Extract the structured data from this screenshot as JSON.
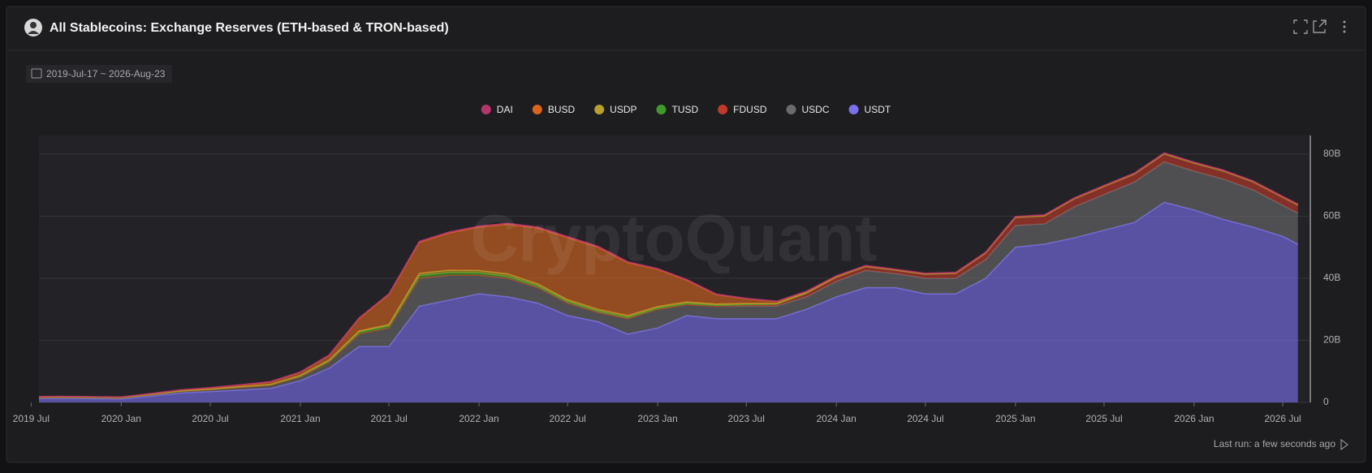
{
  "header": {
    "title": "All Stablecoins: Exchange Reserves (ETH-based & TRON-based)",
    "date_range": "2019-Jul-17 ~ 2026-Aug-23",
    "last_run": "Last run: a few seconds ago"
  },
  "chart_data": {
    "type": "stacked-area",
    "watermark": "CryptoQuant",
    "x": [
      "2019-07",
      "2019-09",
      "2019-11",
      "2020-01",
      "2020-03",
      "2020-05",
      "2020-07",
      "2020-09",
      "2020-11",
      "2021-01",
      "2021-03",
      "2021-05",
      "2021-07",
      "2021-09",
      "2021-11",
      "2022-01",
      "2022-03",
      "2022-05",
      "2022-07",
      "2022-09",
      "2022-11",
      "2023-01",
      "2023-03",
      "2023-05",
      "2023-07",
      "2023-09",
      "2023-11",
      "2024-01",
      "2024-03",
      "2024-05",
      "2024-07",
      "2024-09",
      "2024-11",
      "2025-01",
      "2025-03",
      "2025-05",
      "2025-07",
      "2025-09",
      "2025-11",
      "2026-01",
      "2026-03",
      "2026-05",
      "2026-07",
      "2026-08"
    ],
    "series": [
      {
        "name": "DAI",
        "color": "#b5356b",
        "values": [
          0.05,
          0.05,
          0.05,
          0.05,
          0.05,
          0.05,
          0.05,
          0.1,
          0.1,
          0.1,
          0.1,
          0.2,
          0.2,
          0.3,
          0.3,
          0.3,
          0.3,
          0.3,
          0.3,
          0.3,
          0.3,
          0.2,
          0.2,
          0.2,
          0.1,
          0.1,
          0.1,
          0.1,
          0.1,
          0.1,
          0.1,
          0.1,
          0.1,
          0.1,
          0.1,
          0.1,
          0.1,
          0.1,
          0.1,
          0.1,
          0.1,
          0.1,
          0.1,
          0.1
        ]
      },
      {
        "name": "BUSD",
        "color": "#d9651e",
        "values": [
          0.1,
          0.1,
          0.1,
          0.1,
          0.2,
          0.3,
          0.4,
          0.5,
          0.8,
          1.0,
          1.5,
          4,
          9.7,
          10,
          12,
          14,
          16,
          18,
          20,
          20,
          17,
          12,
          7,
          3,
          1.5,
          0.6,
          0.3,
          0.2,
          0.1,
          0.1,
          0.1,
          0.1,
          0.1,
          0.1,
          0.1,
          0.1,
          0.1,
          0.1,
          0.1,
          0.1,
          0.1,
          0.1,
          0.1,
          0.1
        ]
      },
      {
        "name": "USDP",
        "color": "#b8a02a",
        "values": [
          0.1,
          0.1,
          0.1,
          0.1,
          0.1,
          0.1,
          0.1,
          0.1,
          0.1,
          0.2,
          0.3,
          0.4,
          0.5,
          0.8,
          0.8,
          0.8,
          0.8,
          0.7,
          0.6,
          0.6,
          0.6,
          0.5,
          0.5,
          0.4,
          0.3,
          0.2,
          0.2,
          0.1,
          0.1,
          0.1,
          0.1,
          0.1,
          0.1,
          0.1,
          0.1,
          0.1,
          0.1,
          0.1,
          0.1,
          0.1,
          0.1,
          0.1,
          0.1,
          0.1
        ]
      },
      {
        "name": "TUSD",
        "color": "#3f9a2a",
        "values": [
          0.1,
          0.1,
          0.1,
          0.1,
          0.1,
          0.1,
          0.1,
          0.2,
          0.2,
          0.3,
          0.4,
          0.6,
          0.6,
          0.8,
          0.8,
          0.7,
          0.6,
          0.5,
          0.5,
          0.4,
          0.4,
          0.4,
          0.4,
          0.3,
          0.3,
          0.2,
          0.2,
          0.2,
          0.1,
          0.1,
          0.1,
          0.1,
          0.1,
          0.1,
          0.1,
          0.1,
          0.1,
          0.1,
          0.1,
          0.1,
          0.1,
          0.1,
          0.1,
          0.1
        ]
      },
      {
        "name": "FDUSD",
        "color": "#c0392b",
        "values": [
          0,
          0,
          0,
          0,
          0,
          0,
          0,
          0,
          0,
          0,
          0,
          0,
          0,
          0,
          0,
          0,
          0,
          0,
          0,
          0,
          0,
          0,
          0,
          0,
          0.3,
          0.5,
          1.0,
          1.2,
          1.2,
          1.0,
          1.2,
          1.5,
          2,
          2.5,
          2.5,
          2.5,
          2.5,
          2.5,
          2.5,
          2.5,
          2.5,
          2.5,
          2.5,
          2.5
        ]
      },
      {
        "name": "USDC",
        "color": "#6b6b6e",
        "values": [
          0.3,
          0.3,
          0.3,
          0.3,
          0.4,
          0.5,
          0.6,
          0.8,
          1.0,
          1.2,
          2.0,
          4,
          6,
          9,
          8,
          6,
          6,
          5,
          4,
          3,
          5,
          6,
          3.5,
          4,
          4,
          4,
          4,
          5,
          5.5,
          4.5,
          5,
          5,
          6,
          7,
          6.5,
          10,
          11.5,
          13,
          13,
          12.5,
          13,
          12,
          10,
          10
        ]
      },
      {
        "name": "USDT",
        "color": "#7b6ff0",
        "values": [
          1.2,
          1.3,
          1.2,
          1.1,
          2.0,
          3.0,
          3.5,
          4.0,
          4.5,
          7,
          11,
          18,
          18,
          31,
          33,
          35,
          34,
          32,
          28,
          26,
          22,
          24,
          28,
          27,
          27,
          27,
          30,
          34,
          37,
          37,
          35,
          35,
          40,
          50,
          51,
          53,
          55.5,
          58,
          64.5,
          62,
          59,
          56.5,
          53.5,
          51
        ]
      }
    ],
    "xlim": [
      "2019-07-17",
      "2026-08-23"
    ],
    "xticks": [
      {
        "value": "2019-07",
        "label": "2019 Jul"
      },
      {
        "value": "2020-01",
        "label": "2020 Jan"
      },
      {
        "value": "2020-07",
        "label": "2020 Jul"
      },
      {
        "value": "2021-01",
        "label": "2021 Jan"
      },
      {
        "value": "2021-07",
        "label": "2021 Jul"
      },
      {
        "value": "2022-01",
        "label": "2022 Jan"
      },
      {
        "value": "2022-07",
        "label": "2022 Jul"
      },
      {
        "value": "2023-01",
        "label": "2023 Jan"
      },
      {
        "value": "2023-07",
        "label": "2023 Jul"
      },
      {
        "value": "2024-01",
        "label": "2024 Jan"
      },
      {
        "value": "2024-07",
        "label": "2024 Jul"
      },
      {
        "value": "2025-01",
        "label": "2025 Jan"
      },
      {
        "value": "2025-07",
        "label": "2025 Jul"
      },
      {
        "value": "2026-01",
        "label": "2026 Jan"
      },
      {
        "value": "2026-07",
        "label": "2026 Jul"
      }
    ],
    "ylim": [
      0,
      86
    ],
    "yticks": [
      0,
      {
        "value": 20,
        "label": "20B"
      },
      {
        "value": 40,
        "label": "40B"
      },
      {
        "value": 60,
        "label": "60B"
      },
      {
        "value": 80,
        "label": "80B"
      }
    ],
    "grid": true,
    "legend": "top"
  }
}
